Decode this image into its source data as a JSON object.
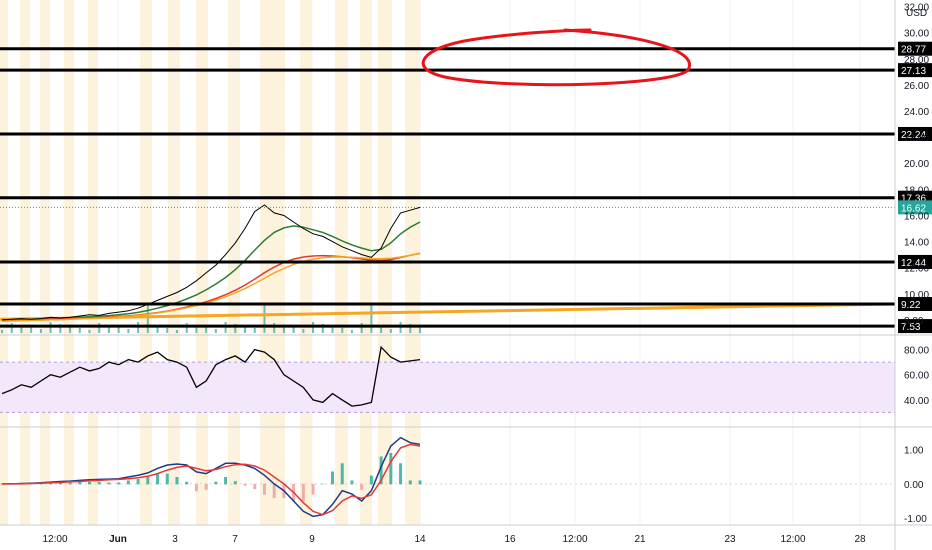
{
  "chart_data": [
    {
      "type": "line",
      "name": "price-pane",
      "currency_label": "USD",
      "y_ticks": [
        "32.00",
        "30.00",
        "28.00",
        "26.00",
        "24.00",
        "22.00",
        "20.00",
        "18.00",
        "16.00",
        "14.00",
        "12.00",
        "10.00",
        "8.00"
      ],
      "y_range": [
        7.0,
        32.5
      ],
      "x_ticks": [
        "12:00",
        "Jun",
        "3",
        "7",
        "9",
        "14",
        "16",
        "12:00",
        "21",
        "23",
        "12:00",
        "28"
      ],
      "last_price": 16.62,
      "last_price_label": "16.62",
      "horizontal_levels": [
        {
          "value": 28.77,
          "label": "28.77"
        },
        {
          "value": 27.13,
          "label": "27.13"
        },
        {
          "value": 22.24,
          "label": "22.24"
        },
        {
          "value": 17.36,
          "label": "17.36"
        },
        {
          "value": 12.44,
          "label": "12.44"
        },
        {
          "value": 9.22,
          "label": "9.22"
        },
        {
          "value": 7.53,
          "label": "7.53"
        }
      ],
      "price_series": [
        8.0,
        8.05,
        8.1,
        8.05,
        8.1,
        8.2,
        8.15,
        8.2,
        8.3,
        8.4,
        8.35,
        8.5,
        8.6,
        8.7,
        8.9,
        9.2,
        9.5,
        9.8,
        10.1,
        10.5,
        11.0,
        11.6,
        12.2,
        13.0,
        13.9,
        15.0,
        16.3,
        16.8,
        16.2,
        16.0,
        15.5,
        15.0,
        14.6,
        14.4,
        14.0,
        13.6,
        13.3,
        13.0,
        12.8,
        13.5,
        15.0,
        16.2,
        16.4,
        16.62
      ],
      "moving_averages": [
        {
          "color": "#2e7d32",
          "values": [
            8.0,
            8.02,
            8.05,
            8.06,
            8.08,
            8.12,
            8.14,
            8.16,
            8.2,
            8.25,
            8.28,
            8.33,
            8.4,
            8.48,
            8.58,
            8.72,
            8.9,
            9.1,
            9.33,
            9.6,
            9.92,
            10.3,
            10.75,
            11.25,
            11.85,
            12.55,
            13.35,
            14.1,
            14.7,
            15.05,
            15.2,
            15.1,
            14.9,
            14.7,
            14.4,
            14.05,
            13.75,
            13.5,
            13.3,
            13.4,
            13.9,
            14.6,
            15.1,
            15.5
          ]
        },
        {
          "color": "#e53935",
          "values": [
            8.0,
            8.01,
            8.03,
            8.04,
            8.05,
            8.07,
            8.08,
            8.1,
            8.13,
            8.16,
            8.18,
            8.22,
            8.26,
            8.31,
            8.38,
            8.46,
            8.56,
            8.68,
            8.82,
            8.98,
            9.17,
            9.39,
            9.64,
            9.93,
            10.27,
            10.67,
            11.13,
            11.62,
            12.05,
            12.4,
            12.66,
            12.82,
            12.9,
            12.93,
            12.9,
            12.84,
            12.76,
            12.67,
            12.58,
            12.55,
            12.62,
            12.78,
            12.95,
            13.1
          ]
        },
        {
          "color": "#f5a623",
          "values": [
            7.9,
            7.92,
            7.94,
            7.96,
            7.98,
            8.0,
            8.02,
            8.05,
            8.08,
            8.11,
            8.14,
            8.18,
            8.23,
            8.28,
            8.35,
            8.43,
            8.53,
            8.65,
            8.78,
            8.93,
            9.1,
            9.3,
            9.52,
            9.78,
            10.07,
            10.4,
            10.78,
            11.2,
            11.6,
            11.95,
            12.25,
            12.48,
            12.65,
            12.76,
            12.82,
            12.83,
            12.8,
            12.75,
            12.7,
            12.68,
            12.72,
            12.82,
            12.95,
            13.08
          ]
        }
      ],
      "long_term_ma": {
        "color": "#f5a623",
        "start": 8.05,
        "end": 9.22
      }
    },
    {
      "type": "line",
      "name": "rsi-pane",
      "y_ticks": [
        "80.00",
        "60.00",
        "40.00"
      ],
      "y_range": [
        20,
        90
      ],
      "band": [
        30,
        70
      ],
      "values": [
        45,
        48,
        52,
        50,
        55,
        60,
        58,
        62,
        66,
        63,
        65,
        70,
        68,
        72,
        70,
        75,
        78,
        72,
        70,
        66,
        50,
        55,
        68,
        72,
        75,
        70,
        80,
        78,
        72,
        60,
        55,
        50,
        40,
        38,
        45,
        40,
        35,
        36,
        38,
        82,
        74,
        70,
        71,
        72
      ]
    },
    {
      "type": "line",
      "name": "macd-pane",
      "y_ticks": [
        "1.00",
        "0.00",
        "-1.00"
      ],
      "y_range": [
        -1.2,
        1.6
      ],
      "macd": [
        0.0,
        0.0,
        0.01,
        0.02,
        0.03,
        0.05,
        0.07,
        0.08,
        0.1,
        0.12,
        0.13,
        0.14,
        0.15,
        0.2,
        0.25,
        0.32,
        0.45,
        0.55,
        0.58,
        0.55,
        0.35,
        0.3,
        0.45,
        0.6,
        0.6,
        0.55,
        0.45,
        0.25,
        0.0,
        -0.2,
        -0.5,
        -0.8,
        -0.95,
        -0.9,
        -0.6,
        -0.2,
        -0.3,
        -0.5,
        -0.2,
        0.5,
        1.1,
        1.35,
        1.2,
        1.15
      ],
      "signal": [
        0.0,
        0.0,
        0.0,
        0.01,
        0.02,
        0.03,
        0.04,
        0.06,
        0.07,
        0.09,
        0.1,
        0.12,
        0.13,
        0.15,
        0.18,
        0.22,
        0.3,
        0.4,
        0.48,
        0.52,
        0.45,
        0.38,
        0.42,
        0.5,
        0.56,
        0.57,
        0.52,
        0.4,
        0.2,
        0.0,
        -0.25,
        -0.55,
        -0.8,
        -0.9,
        -0.78,
        -0.5,
        -0.35,
        -0.42,
        -0.32,
        0.1,
        0.65,
        1.05,
        1.15,
        1.1
      ]
    }
  ],
  "colors": {
    "session_highlight": "#fdf3dc",
    "level_line": "#000000",
    "price_line": "#000000",
    "last_price_tag": "#26a69a",
    "annotation_ellipse": "#e8141a",
    "rsi_band_fill": "#f2e7fb",
    "volume": "#26a69a",
    "macd_line": "#1e3a8a",
    "signal_line": "#e53935"
  }
}
